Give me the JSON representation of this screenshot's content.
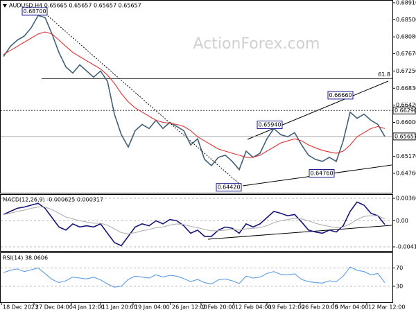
{
  "chart_data": [
    {
      "type": "line",
      "title": "AUDUSD,H4 0.65665 0.65657 0.65657 0.65657",
      "watermark": "ActionForex.com",
      "x": [
        0,
        1,
        2,
        3,
        4,
        5,
        6,
        7,
        8,
        9,
        10,
        11,
        12,
        13,
        14,
        15,
        16,
        17,
        18,
        19,
        20,
        21,
        22,
        23,
        24,
        25,
        26,
        27,
        28,
        29,
        30,
        31,
        32,
        33,
        34,
        35,
        36,
        37,
        38,
        39,
        40,
        41,
        42,
        43,
        44,
        45,
        46,
        47,
        48,
        49,
        50,
        51,
        52,
        53,
        54,
        55
      ],
      "xlim": [
        -0.5,
        56.2
      ],
      "ylim": [
        0.64288,
        0.68977
      ],
      "yticks": [
        {
          "value": 0.6891,
          "label": "0.68910"
        },
        {
          "value": 0.685,
          "label": "0.68500"
        },
        {
          "value": 0.6808,
          "label": "0.68080"
        },
        {
          "value": 0.6767,
          "label": "0.67670"
        },
        {
          "value": 0.6725,
          "label": "0.67250"
        },
        {
          "value": 0.6683,
          "label": "0.66830"
        },
        {
          "value": 0.6642,
          "label": "0.66420"
        },
        {
          "value": 0.66,
          "label": "0.66000"
        },
        {
          "value": 0.6517,
          "label": "0.65170"
        },
        {
          "value": 0.6476,
          "label": "0.64760"
        }
      ],
      "series": [
        {
          "color": "#3f5f7a",
          "values": [
            0.676,
            0.6785,
            0.68,
            0.681,
            0.683,
            0.686,
            0.6855,
            0.6815,
            0.677,
            0.6735,
            0.672,
            0.674,
            0.6725,
            0.671,
            0.6725,
            0.67,
            0.662,
            0.657,
            0.654,
            0.658,
            0.6595,
            0.6585,
            0.6605,
            0.6585,
            0.66,
            0.659,
            0.658,
            0.6545,
            0.656,
            0.651,
            0.6495,
            0.6515,
            0.652,
            0.6505,
            0.6485,
            0.653,
            0.6515,
            0.6525,
            0.656,
            0.6585,
            0.657,
            0.6565,
            0.6575,
            0.6545,
            0.652,
            0.651,
            0.6505,
            0.6515,
            0.6505,
            0.6555,
            0.6625,
            0.661,
            0.662,
            0.6605,
            0.6595,
            0.65657
          ]
        },
        {
          "color": "#e03030",
          "values": [
            0.6765,
            0.6775,
            0.6785,
            0.6795,
            0.6805,
            0.6815,
            0.682,
            0.6815,
            0.68,
            0.6785,
            0.677,
            0.676,
            0.675,
            0.674,
            0.673,
            0.6715,
            0.6695,
            0.667,
            0.665,
            0.6635,
            0.6625,
            0.6615,
            0.6605,
            0.66,
            0.6598,
            0.6595,
            0.659,
            0.658,
            0.6565,
            0.6555,
            0.6545,
            0.6535,
            0.653,
            0.6525,
            0.652,
            0.6515,
            0.6515,
            0.652,
            0.653,
            0.654,
            0.655,
            0.6555,
            0.656,
            0.6555,
            0.6545,
            0.6538,
            0.6532,
            0.6528,
            0.6525,
            0.653,
            0.6545,
            0.6565,
            0.6575,
            0.6585,
            0.659,
            0.6585
          ]
        }
      ],
      "price_lines": [
        {
          "value": 0.6629,
          "label": "0.66290",
          "style": "dotted"
        },
        {
          "value": 0.65657,
          "label": "0.65657",
          "style": "solid"
        }
      ],
      "level": {
        "value": 0.67065,
        "label": "61.8"
      },
      "annotations": [
        {
          "value": 0.687,
          "label": "0.68700",
          "x": 4.5
        },
        {
          "value": 0.6666,
          "label": "0.66660",
          "x": 48.6
        },
        {
          "value": 0.6594,
          "label": "0.65940",
          "x": 38.4
        },
        {
          "value": 0.6476,
          "label": "0.64760",
          "x": 45.9
        },
        {
          "value": 0.6442,
          "label": "0.64420",
          "x": 32.5
        }
      ]
    },
    {
      "type": "line",
      "title": "MACD(12,26,9) -0.000625 0.000317",
      "x": [
        0,
        1,
        2,
        3,
        4,
        5,
        6,
        7,
        8,
        9,
        10,
        11,
        12,
        13,
        14,
        15,
        16,
        17,
        18,
        19,
        20,
        21,
        22,
        23,
        24,
        25,
        26,
        27,
        28,
        29,
        30,
        31,
        32,
        33,
        34,
        35,
        36,
        37,
        38,
        39,
        40,
        41,
        42,
        43,
        44,
        45,
        46,
        47,
        48,
        49,
        50,
        51,
        52,
        53,
        54,
        55
      ],
      "xlim": [
        -0.5,
        56.2
      ],
      "ylim": [
        -0.00485,
        0.00427
      ],
      "yticks": [
        0.003606,
        {
          "value": 0,
          "label": "0.00"
        },
        -0.004188
      ],
      "series": [
        {
          "color": "#14147a",
          "values": [
            0.001,
            0.0015,
            0.002,
            0.0022,
            0.0025,
            0.0028,
            0.002,
            0.0005,
            -0.001,
            -0.0015,
            -0.0005,
            -0.001,
            -0.0008,
            -0.001,
            -0.0005,
            -0.002,
            -0.0035,
            -0.004,
            -0.0025,
            -0.001,
            -0.0005,
            -0.0008,
            0,
            -0.0005,
            0.0002,
            0,
            -0.0008,
            -0.002,
            -0.0015,
            -0.0025,
            -0.0025,
            -0.0015,
            -0.001,
            -0.0012,
            -0.002,
            -0.0005,
            -0.001,
            -0.0005,
            0.0005,
            0.0015,
            0.0012,
            0.0008,
            0.001,
            -0.0002,
            -0.0015,
            -0.0018,
            -0.002,
            -0.0015,
            -0.0018,
            -0.0008,
            0.0015,
            0.003,
            0.0025,
            0.0012,
            0.0008,
            -0.0006
          ]
        },
        {
          "color": "#b0b0b0",
          "values": [
            0.001,
            0.0012,
            0.0015,
            0.0017,
            0.002,
            0.0022,
            0.0022,
            0.0018,
            0.0012,
            0.0006,
            0.0003,
            0,
            -0.0002,
            -0.0004,
            -0.0004,
            -0.0007,
            -0.0013,
            -0.0019,
            -0.0021,
            -0.0019,
            -0.0016,
            -0.0014,
            -0.0011,
            -0.001,
            -0.0007,
            -0.0005,
            -0.0006,
            -0.0009,
            -0.0011,
            -0.0014,
            -0.0016,
            -0.0016,
            -0.0015,
            -0.0014,
            -0.0015,
            -0.0013,
            -0.0012,
            -0.0011,
            -0.0008,
            -0.0003,
            0,
            0.0002,
            0.0004,
            0.0003,
            0,
            -0.0004,
            -0.0007,
            -0.0009,
            -0.0011,
            -0.001,
            -0.0005,
            0.0002,
            0.0007,
            0.0008,
            0.0008,
            0.0003
          ]
        }
      ]
    },
    {
      "type": "line",
      "title": "RSI(14) 38.0606",
      "x": [
        0,
        1,
        2,
        3,
        4,
        5,
        6,
        7,
        8,
        9,
        10,
        11,
        12,
        13,
        14,
        15,
        16,
        17,
        18,
        19,
        20,
        21,
        22,
        23,
        24,
        25,
        26,
        27,
        28,
        29,
        30,
        31,
        32,
        33,
        34,
        35,
        36,
        37,
        38,
        39,
        40,
        41,
        42,
        43,
        44,
        45,
        46,
        47,
        48,
        49,
        50,
        51,
        52,
        53,
        54,
        55
      ],
      "xlim": [
        -0.5,
        56.2
      ],
      "ylim": [
        -5,
        104
      ],
      "yticks": [
        70,
        30
      ],
      "xticks": [
        {
          "value": -0.3,
          "label": "18 Dec 2023"
        },
        {
          "value": 4.4,
          "label": "27 Dec 04:00"
        },
        {
          "value": 9.8,
          "label": "4 Jan 12:00"
        },
        {
          "value": 14,
          "label": "11 Jan 20:00"
        },
        {
          "value": 18.7,
          "label": "19 Jan 04:00"
        },
        {
          "value": 24.1,
          "label": "26 Jan 12:00"
        },
        {
          "value": 28.5,
          "label": "2 Feb 20:00"
        },
        {
          "value": 33.2,
          "label": "12 Feb 04:00"
        },
        {
          "value": 38,
          "label": "19 Feb 12:00"
        },
        {
          "value": 42.8,
          "label": "26 Feb 20:00"
        },
        {
          "value": 47.6,
          "label": "5 Mar 04:00"
        },
        {
          "value": 52.4,
          "label": "12 Mar 12:00"
        }
      ],
      "series": [
        {
          "color": "#5b9be6",
          "values": [
            60,
            65,
            68,
            62,
            66,
            70,
            58,
            45,
            38,
            42,
            50,
            48,
            46,
            50,
            44,
            35,
            28,
            30,
            45,
            52,
            50,
            48,
            55,
            50,
            54,
            52,
            47,
            40,
            45,
            38,
            35,
            44,
            46,
            42,
            36,
            52,
            48,
            50,
            58,
            62,
            56,
            55,
            57,
            45,
            40,
            38,
            37,
            42,
            40,
            52,
            72,
            65,
            62,
            55,
            58,
            38.0606
          ]
        }
      ]
    }
  ]
}
